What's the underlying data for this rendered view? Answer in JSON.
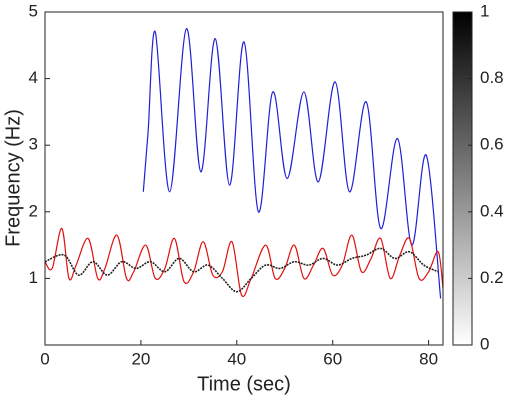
{
  "chart_data": {
    "type": "line",
    "xlabel": "Time (sec)",
    "ylabel": "Frequency (Hz)",
    "xlim": [
      0,
      83
    ],
    "ylim": [
      0,
      5
    ],
    "xticks": [
      0,
      20,
      40,
      60,
      80
    ],
    "yticks": [
      1,
      2,
      3,
      4,
      5
    ],
    "grid": false,
    "series": [
      {
        "color": "#1f1fd6",
        "x": [
          20.5,
          21.5,
          23,
          26,
          29.5,
          32.5,
          35.5,
          38.5,
          41.5,
          44.5,
          47.5,
          50.5,
          54,
          57,
          60.5,
          63.5,
          67,
          70,
          73.5,
          76.5,
          79.5,
          82.5
        ],
        "values": [
          2.3,
          3.2,
          4.7,
          2.3,
          4.75,
          2.6,
          4.6,
          2.4,
          4.55,
          2.0,
          3.8,
          2.5,
          3.8,
          2.45,
          3.95,
          2.3,
          3.65,
          1.75,
          3.1,
          1.5,
          2.85,
          0.7
        ]
      },
      {
        "color": "#e01010",
        "x": [
          0,
          1.5,
          3.5,
          5,
          6.5,
          9,
          11,
          12.5,
          15,
          17,
          18.5,
          21,
          23,
          25,
          27,
          29,
          31,
          33,
          35,
          37,
          39,
          41,
          43,
          46,
          48,
          50,
          52,
          54,
          56,
          58,
          60,
          62,
          64,
          66,
          68,
          70,
          72,
          74,
          76,
          78,
          80,
          82,
          83
        ],
        "values": [
          1.25,
          1.15,
          1.75,
          1.0,
          1.2,
          1.6,
          1.0,
          1.15,
          1.65,
          1.0,
          1.1,
          1.5,
          1.0,
          1.15,
          1.6,
          0.95,
          1.1,
          1.55,
          1.05,
          1.1,
          1.55,
          0.75,
          1.0,
          1.5,
          1.0,
          1.15,
          1.5,
          1.0,
          1.2,
          1.45,
          1.05,
          1.2,
          1.65,
          1.1,
          1.3,
          1.6,
          1.0,
          1.35,
          1.6,
          1.0,
          1.1,
          1.4,
          0.85
        ]
      },
      {
        "color": "#222222",
        "x": [
          0,
          4,
          7,
          10,
          13,
          16,
          19,
          22,
          25,
          28,
          31,
          34,
          37,
          40,
          43,
          46,
          49,
          52,
          55,
          58,
          61,
          64,
          67,
          70,
          73,
          76,
          79,
          82
        ],
        "values": [
          1.25,
          1.35,
          1.05,
          1.25,
          1.05,
          1.25,
          1.15,
          1.25,
          1.1,
          1.3,
          1.1,
          1.2,
          1.0,
          0.8,
          1.0,
          1.2,
          1.15,
          1.25,
          1.2,
          1.3,
          1.2,
          1.3,
          1.35,
          1.45,
          1.3,
          1.4,
          1.2,
          1.1
        ]
      }
    ],
    "colorbar": {
      "lim": [
        0,
        1
      ],
      "ticks": [
        0,
        0.2,
        0.4,
        0.6,
        0.8,
        1
      ],
      "colors": [
        "#ffffff",
        "#000000"
      ]
    }
  }
}
